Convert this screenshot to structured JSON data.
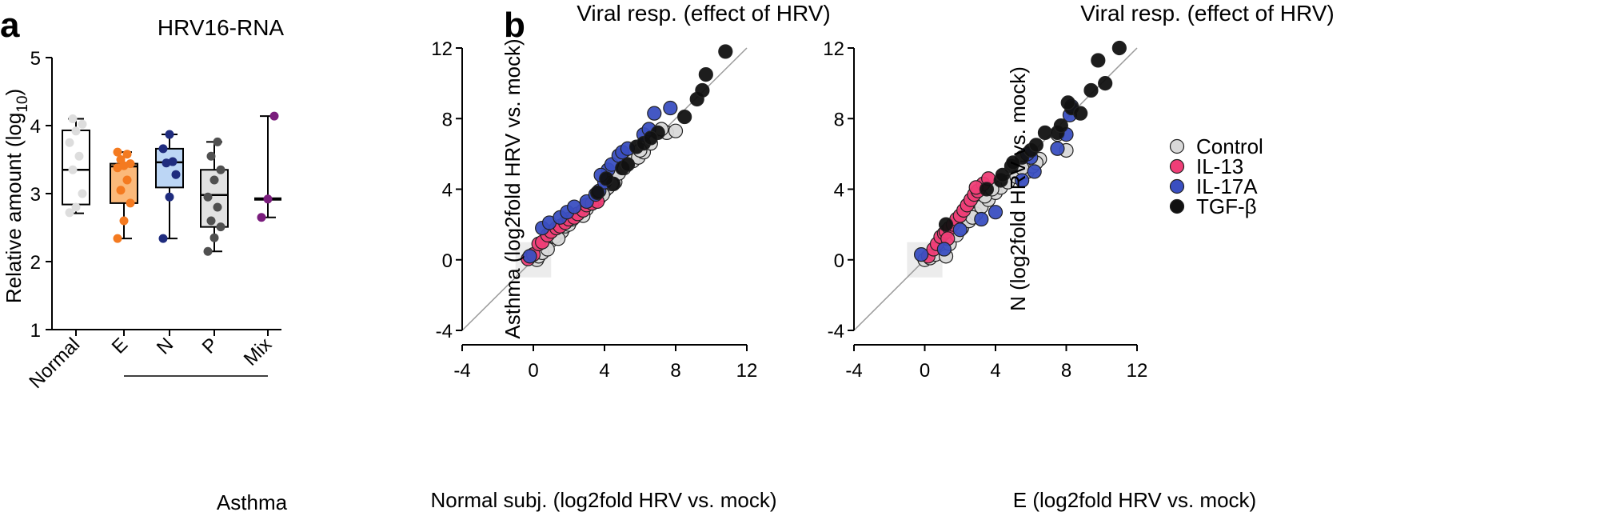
{
  "panels": {
    "a": {
      "letter": "a",
      "title": "HRV16-RNA"
    },
    "b": {
      "letter": "b"
    }
  },
  "colors": {
    "control": "#d9d9d9",
    "il13": "#ef3e77",
    "il17a": "#3a4fc1",
    "tgfb": "#111111",
    "normal_box": "#ffffff",
    "e_box": "#fbb97a",
    "e_point": "#f47a20",
    "n_box": "#bcd6f5",
    "n_point": "#1f2c7e",
    "p_box": "#e2e2e2",
    "p_point": "#505050",
    "mix_point": "#7a1d7d",
    "normal_point": "#dddddd"
  },
  "chart_data": [
    {
      "type": "box",
      "title": "HRV16-RNA",
      "ylabel_main": "Relative amount (log",
      "ylabel_sub": "10",
      "ylabel_end": ")",
      "ylim": [
        1,
        5
      ],
      "yticks": [
        "1",
        "2",
        "3",
        "4",
        "5"
      ],
      "categories": [
        "Normal",
        "E",
        "N",
        "P",
        "Mix"
      ],
      "group_label": "Asthma",
      "boxes": [
        {
          "name": "Normal",
          "min": 2.71,
          "q1": 2.84,
          "median": 3.35,
          "q3": 3.93,
          "max": 4.1,
          "points": [
            2.72,
            2.8,
            3.0,
            3.35,
            3.55,
            3.75,
            3.92,
            4.02,
            4.1
          ]
        },
        {
          "name": "E",
          "min": 2.34,
          "q1": 2.86,
          "median": 3.4,
          "q3": 3.44,
          "max": 3.61,
          "points": [
            2.34,
            2.6,
            2.86,
            3.05,
            3.2,
            3.38,
            3.41,
            3.44,
            3.5,
            3.58,
            3.61
          ]
        },
        {
          "name": "N",
          "min": 2.34,
          "q1": 3.09,
          "median": 3.46,
          "q3": 3.66,
          "max": 3.87,
          "points": [
            2.34,
            2.95,
            3.28,
            3.45,
            3.47,
            3.66,
            3.87
          ]
        },
        {
          "name": "P",
          "min": 2.15,
          "q1": 2.51,
          "median": 2.98,
          "q3": 3.35,
          "max": 3.76,
          "points": [
            2.15,
            2.35,
            2.51,
            2.6,
            2.8,
            2.95,
            3.2,
            3.35,
            3.55,
            3.76
          ]
        },
        {
          "name": "Mix",
          "min": 2.65,
          "q1": 2.9,
          "median": 2.92,
          "q3": 2.94,
          "max": 4.14,
          "points": [
            2.65,
            2.92,
            4.14
          ]
        }
      ]
    },
    {
      "type": "scatter",
      "title": "Viral resp. (effect of HRV)",
      "xlabel": "Normal subj. (log2fold HRV vs. mock)",
      "ylabel": "Asthma (log2fold HRV vs. mock)",
      "xlim": [
        -4,
        12
      ],
      "ylim": [
        -4,
        12
      ],
      "xticks": [
        "-4",
        "0",
        "4",
        "8",
        "12"
      ],
      "yticks": [
        "-4",
        "0",
        "4",
        "8",
        "12"
      ],
      "series": [
        {
          "name": "Control",
          "points": [
            [
              0.2,
              0
            ],
            [
              0.3,
              0.2
            ],
            [
              0.5,
              0.4
            ],
            [
              1,
              1.1
            ],
            [
              1.2,
              1.3
            ],
            [
              1.6,
              1.6
            ],
            [
              1.8,
              1.9
            ],
            [
              2,
              2
            ],
            [
              2.2,
              2.3
            ],
            [
              2.5,
              2.6
            ],
            [
              3,
              2.9
            ],
            [
              3.3,
              3.2
            ],
            [
              3.7,
              3.5
            ],
            [
              4,
              3.9
            ],
            [
              4.2,
              4.1
            ],
            [
              4.6,
              4.4
            ],
            [
              4.8,
              4.9
            ],
            [
              5.1,
              5.2
            ],
            [
              5.6,
              5.6
            ],
            [
              5.9,
              5.8
            ],
            [
              6.2,
              6.1
            ],
            [
              6.6,
              6.6
            ],
            [
              7.5,
              7.2
            ],
            [
              7.2,
              7.4
            ],
            [
              8,
              7.3
            ],
            [
              3.4,
              3.3
            ],
            [
              3.9,
              3.7
            ],
            [
              2.8,
              2.5
            ],
            [
              1.4,
              1.2
            ],
            [
              0.8,
              0.6
            ],
            [
              4.4,
              4.3
            ],
            [
              5.3,
              5.4
            ],
            [
              6,
              6.2
            ]
          ]
        },
        {
          "name": "IL-13",
          "points": [
            [
              -0.3,
              0.05
            ],
            [
              0,
              0.3
            ],
            [
              0.3,
              0.9
            ],
            [
              0.5,
              1.0
            ],
            [
              0.8,
              1.4
            ],
            [
              1,
              1.6
            ],
            [
              1.3,
              1.8
            ],
            [
              1.5,
              1.9
            ],
            [
              1.8,
              2.1
            ],
            [
              2,
              2.3
            ],
            [
              2.3,
              2.4
            ],
            [
              2.5,
              2.6
            ],
            [
              2.8,
              2.8
            ],
            [
              3,
              3.1
            ],
            [
              3.3,
              3.2
            ],
            [
              3.6,
              3.3
            ]
          ]
        },
        {
          "name": "IL-17A",
          "points": [
            [
              -0.2,
              0.2
            ],
            [
              0.5,
              1.8
            ],
            [
              0.9,
              2.1
            ],
            [
              1.5,
              2.4
            ],
            [
              1.9,
              2.7
            ],
            [
              2.3,
              3.0
            ],
            [
              3,
              3.3
            ],
            [
              3.5,
              3.7
            ],
            [
              3.7,
              3.9
            ],
            [
              4,
              4.4
            ],
            [
              4.2,
              5.1
            ],
            [
              4.4,
              5.4
            ],
            [
              4.8,
              5.9
            ],
            [
              5,
              6.1
            ],
            [
              5.3,
              6.3
            ],
            [
              6.2,
              7.1
            ],
            [
              6.5,
              7.4
            ],
            [
              6.8,
              8.3
            ],
            [
              7.7,
              8.6
            ],
            [
              3.8,
              4.8
            ]
          ]
        },
        {
          "name": "TGF-β",
          "points": [
            [
              4.5,
              4.3
            ],
            [
              5,
              5.2
            ],
            [
              5.3,
              5.4
            ],
            [
              5.8,
              6.4
            ],
            [
              6.2,
              6.6
            ],
            [
              7,
              7.2
            ],
            [
              8.5,
              8.1
            ],
            [
              9.2,
              9.1
            ],
            [
              9.5,
              9.6
            ],
            [
              9.7,
              10.5
            ],
            [
              10.8,
              11.8
            ],
            [
              4.1,
              4.6
            ],
            [
              3.6,
              3.8
            ],
            [
              6.6,
              6.9
            ]
          ]
        }
      ]
    },
    {
      "type": "scatter",
      "title": "Viral resp. (effect of HRV)",
      "xlabel": "E (log2fold HRV vs. mock)",
      "ylabel": "N (log2fold HRV vs. mock)",
      "xlim": [
        -4,
        12
      ],
      "ylim": [
        -4,
        12
      ],
      "xticks": [
        "-4",
        "0",
        "4",
        "8",
        "12"
      ],
      "yticks": [
        "-4",
        "0",
        "4",
        "8",
        "12"
      ],
      "series": [
        {
          "name": "Control",
          "points": [
            [
              0,
              0
            ],
            [
              0.3,
              0.1
            ],
            [
              0.6,
              0.3
            ],
            [
              1.2,
              0.2
            ],
            [
              1.4,
              0.9
            ],
            [
              1.8,
              1.4
            ],
            [
              2.1,
              1.8
            ],
            [
              2.5,
              2.2
            ],
            [
              2.9,
              2.6
            ],
            [
              3.2,
              3.0
            ],
            [
              3.6,
              3.4
            ],
            [
              4,
              3.8
            ],
            [
              4.3,
              4.1
            ],
            [
              4.7,
              4.4
            ],
            [
              5.2,
              4.7
            ],
            [
              5.8,
              5.0
            ],
            [
              6.1,
              5.3
            ],
            [
              6.5,
              5.7
            ],
            [
              7.5,
              7.1
            ],
            [
              8,
              6.2
            ],
            [
              3.4,
              3.6
            ],
            [
              3.8,
              4.0
            ],
            [
              2.7,
              2.4
            ],
            [
              5.5,
              5.2
            ],
            [
              6.3,
              5.5
            ]
          ]
        },
        {
          "name": "IL-13",
          "points": [
            [
              0.2,
              0.2
            ],
            [
              0.5,
              0.6
            ],
            [
              0.7,
              0.9
            ],
            [
              0.9,
              1.3
            ],
            [
              1.1,
              1.5
            ],
            [
              1.2,
              1.6
            ],
            [
              1.4,
              1.8
            ],
            [
              1.6,
              2.0
            ],
            [
              1.8,
              2.3
            ],
            [
              2,
              2.5
            ],
            [
              2.2,
              2.8
            ],
            [
              2.4,
              3.1
            ],
            [
              2.6,
              3.4
            ],
            [
              2.8,
              3.7
            ],
            [
              3,
              3.9
            ],
            [
              3.3,
              4.3
            ],
            [
              3.6,
              4.6
            ],
            [
              2.9,
              4.1
            ],
            [
              1.3,
              1.2
            ]
          ]
        },
        {
          "name": "IL-17A",
          "points": [
            [
              -0.2,
              0.3
            ],
            [
              1.1,
              0.6
            ],
            [
              2,
              1.7
            ],
            [
              3.2,
              2.3
            ],
            [
              4,
              2.7
            ],
            [
              5.5,
              4.5
            ],
            [
              6.2,
              5.0
            ],
            [
              7.5,
              6.3
            ],
            [
              8,
              7.1
            ],
            [
              8.2,
              8.2
            ],
            [
              8.3,
              8.7
            ],
            [
              6,
              5.8
            ],
            [
              5.8,
              6.0
            ]
          ]
        },
        {
          "name": "TGF-β",
          "points": [
            [
              1.2,
              2.0
            ],
            [
              3.5,
              4.0
            ],
            [
              4.3,
              4.5
            ],
            [
              4.9,
              5.3
            ],
            [
              5.5,
              5.8
            ],
            [
              6,
              6.2
            ],
            [
              6.3,
              6.5
            ],
            [
              6.8,
              7.2
            ],
            [
              7.5,
              7.2
            ],
            [
              7.7,
              7.6
            ],
            [
              8.3,
              8.6
            ],
            [
              8.1,
              8.9
            ],
            [
              8.8,
              8.3
            ],
            [
              9.4,
              9.6
            ],
            [
              10.2,
              10.0
            ],
            [
              9.8,
              11.3
            ],
            [
              11,
              12.0
            ],
            [
              5,
              5.5
            ],
            [
              4.4,
              4.8
            ]
          ]
        }
      ]
    }
  ],
  "legend": [
    {
      "label": "Control",
      "key": "control"
    },
    {
      "label": "IL-13",
      "key": "il13"
    },
    {
      "label": "IL-17A",
      "key": "il17a"
    },
    {
      "label": "TGF-β",
      "key": "tgfb"
    }
  ]
}
